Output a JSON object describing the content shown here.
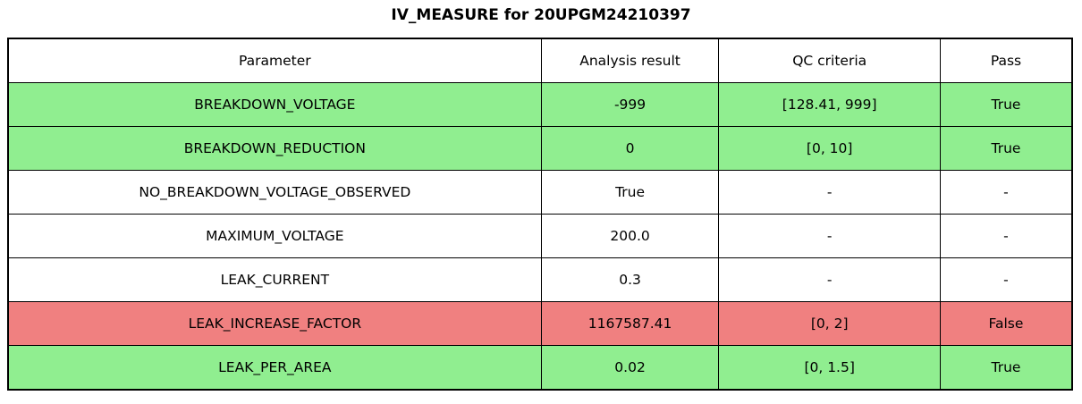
{
  "chart_data": {
    "type": "table",
    "title": "IV_MEASURE for 20UPGM24210397",
    "columns": [
      "Parameter",
      "Analysis result",
      "QC criteria",
      "Pass"
    ],
    "rows": [
      {
        "parameter": "BREAKDOWN_VOLTAGE",
        "analysis_result": "-999",
        "qc_criteria": "[128.41, 999]",
        "pass": "True",
        "status": "pass"
      },
      {
        "parameter": "BREAKDOWN_REDUCTION",
        "analysis_result": "0",
        "qc_criteria": "[0, 10]",
        "pass": "True",
        "status": "pass"
      },
      {
        "parameter": "NO_BREAKDOWN_VOLTAGE_OBSERVED",
        "analysis_result": "True",
        "qc_criteria": "-",
        "pass": "-",
        "status": "neutral"
      },
      {
        "parameter": "MAXIMUM_VOLTAGE",
        "analysis_result": "200.0",
        "qc_criteria": "-",
        "pass": "-",
        "status": "neutral"
      },
      {
        "parameter": "LEAK_CURRENT",
        "analysis_result": "0.3",
        "qc_criteria": "-",
        "pass": "-",
        "status": "neutral"
      },
      {
        "parameter": "LEAK_INCREASE_FACTOR",
        "analysis_result": "1167587.41",
        "qc_criteria": "[0, 2]",
        "pass": "False",
        "status": "fail"
      },
      {
        "parameter": "LEAK_PER_AREA",
        "analysis_result": "0.02",
        "qc_criteria": "[0, 1.5]",
        "pass": "True",
        "status": "pass"
      }
    ]
  },
  "colors": {
    "pass_green": "#90EE90",
    "fail_red": "#F08080",
    "neutral_white": "#FFFFFF",
    "border_black": "#000000"
  }
}
